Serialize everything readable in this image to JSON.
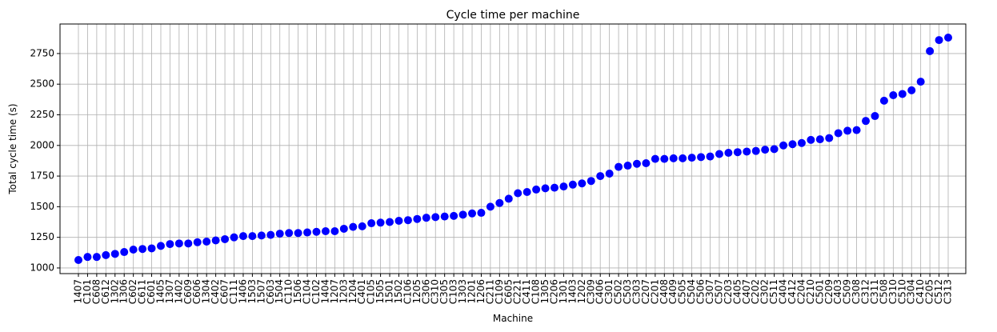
{
  "chart_data": {
    "type": "scatter",
    "title": "Cycle time per machine",
    "x_label": "Machine",
    "y_label": "Total cycle time (s)",
    "categories": [
      "1407",
      "C101",
      "C608",
      "C612",
      "1302",
      "1306",
      "C602",
      "C611",
      "C601",
      "1405",
      "1307",
      "1402",
      "C609",
      "C606",
      "1304",
      "C402",
      "C607",
      "C111",
      "1406",
      "1503",
      "1507",
      "C603",
      "1504",
      "C110",
      "1506",
      "C104",
      "C102",
      "1404",
      "1207",
      "1203",
      "1204",
      "C401",
      "C105",
      "1505",
      "1501",
      "1502",
      "C106",
      "1205",
      "C306",
      "C310",
      "C305",
      "C103",
      "1303",
      "1201",
      "1206",
      "C211",
      "C109",
      "C605",
      "C221",
      "C411",
      "C108",
      "1305",
      "C206",
      "1301",
      "1403",
      "1202",
      "C309",
      "C406",
      "C301",
      "C502",
      "C503",
      "C303",
      "C207",
      "C201",
      "C408",
      "C409",
      "C505",
      "C504",
      "C506",
      "C307",
      "C507",
      "C203",
      "C405",
      "C407",
      "C202",
      "C302",
      "C511",
      "C404",
      "C412",
      "C204",
      "C210",
      "C501",
      "C209",
      "C403",
      "C509",
      "C308",
      "C312",
      "C311",
      "C508",
      "C310",
      "C510",
      "C304",
      "C410",
      "C205",
      "C512",
      "C313"
    ],
    "values": [
      1065,
      1090,
      1090,
      1105,
      1115,
      1130,
      1150,
      1155,
      1160,
      1180,
      1195,
      1200,
      1200,
      1210,
      1215,
      1225,
      1235,
      1250,
      1260,
      1260,
      1265,
      1270,
      1280,
      1285,
      1285,
      1290,
      1295,
      1300,
      1300,
      1320,
      1335,
      1340,
      1365,
      1370,
      1375,
      1385,
      1390,
      1400,
      1410,
      1415,
      1420,
      1425,
      1435,
      1445,
      1450,
      1500,
      1530,
      1565,
      1610,
      1620,
      1640,
      1650,
      1655,
      1665,
      1680,
      1690,
      1710,
      1750,
      1770,
      1825,
      1835,
      1850,
      1855,
      1890,
      1890,
      1895,
      1895,
      1900,
      1905,
      1910,
      1930,
      1940,
      1945,
      1950,
      1955,
      1965,
      1970,
      2000,
      2010,
      2020,
      2045,
      2050,
      2060,
      2100,
      2120,
      2125,
      2200,
      2240,
      2365,
      2410,
      2420,
      2450,
      2520,
      2770,
      2860,
      2880
    ],
    "color": "#0000ff",
    "ylim": [
      954,
      2991
    ],
    "yticks": [
      1000,
      1250,
      1500,
      1750,
      2000,
      2250,
      2500,
      2750
    ],
    "grid": true
  }
}
